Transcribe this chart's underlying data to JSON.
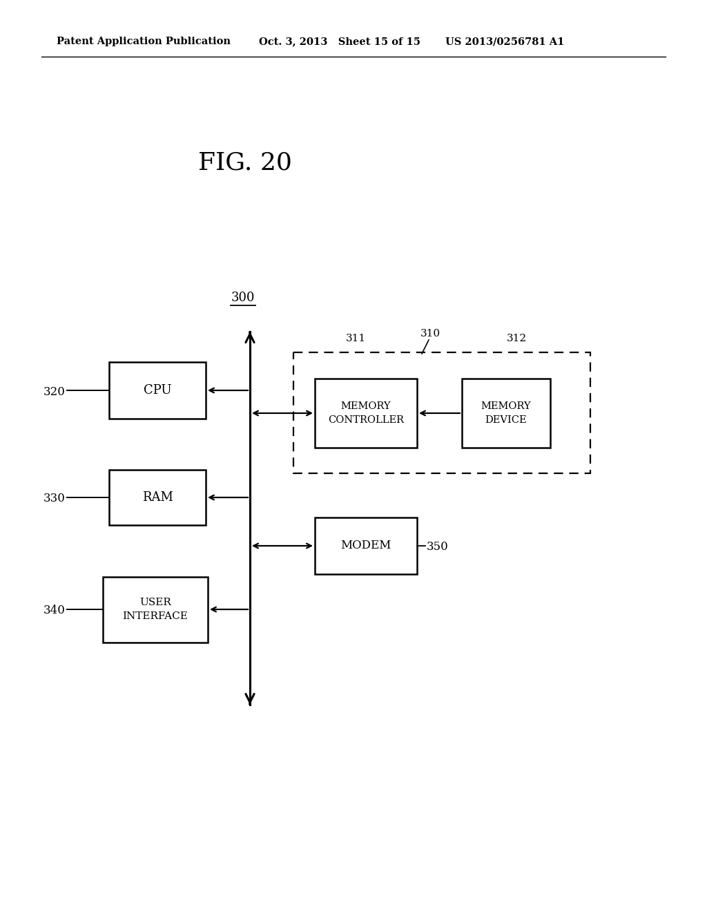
{
  "title": "FIG. 20",
  "header_left": "Patent Application Publication",
  "header_mid": "Oct. 3, 2013   Sheet 15 of 15",
  "header_right": "US 2013/0256781 A1",
  "label_300": "300",
  "label_310": "310",
  "label_311": "311",
  "label_312": "312",
  "label_320": "320",
  "label_330": "330",
  "label_340": "340",
  "label_350": "350",
  "box_cpu": "CPU",
  "box_ram": "RAM",
  "box_ui": "USER\nINTERFACE",
  "box_mem_ctrl": "MEMORY\nCONTROLLER",
  "box_mem_dev": "MEMORY\nDEVICE",
  "box_modem": "MODEM",
  "bg_color": "#ffffff",
  "line_color": "#000000"
}
